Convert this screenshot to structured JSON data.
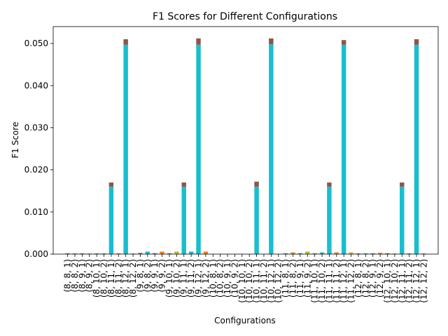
{
  "chart_data": {
    "type": "bar",
    "title": "F1 Scores for Different Configurations",
    "xlabel": "Configurations",
    "ylabel": "F1 Score",
    "ylim": [
      0,
      0.054
    ],
    "yticks": [
      "0.000",
      "0.010",
      "0.020",
      "0.030",
      "0.040",
      "0.050"
    ],
    "ytick_values": [
      0,
      0.01,
      0.02,
      0.03,
      0.04,
      0.05
    ],
    "grid": false,
    "legend": "none",
    "colors": {
      "base": "#17becf",
      "cap": "#8c564b",
      "small": [
        "#1f77b4",
        "#ff7f0e",
        "#2ca02c",
        "#bcbd22",
        "#7f7f7f",
        "#17becf"
      ]
    },
    "categories": [
      "(8, 8, 1)",
      "(8, 8, 2)",
      "(8, 9, 1)",
      "(8, 9, 2)",
      "(8, 10, 1)",
      "(8, 10, 2)",
      "(8, 11, 1)",
      "(8, 11, 2)",
      "(8, 12, 1)",
      "(8, 12, 2)",
      "(9, 8, 1)",
      "(9, 8, 2)",
      "(9, 9, 1)",
      "(9, 9, 2)",
      "(9, 10, 1)",
      "(9, 10, 2)",
      "(9, 11, 1)",
      "(9, 11, 2)",
      "(9, 12, 1)",
      "(9, 12, 2)",
      "(10, 8, 1)",
      "(10, 8, 2)",
      "(10, 9, 1)",
      "(10, 9, 2)",
      "(10, 10, 1)",
      "(10, 10, 2)",
      "(10, 11, 1)",
      "(10, 11, 2)",
      "(10, 12, 1)",
      "(10, 12, 2)",
      "(11, 8, 1)",
      "(11, 8, 2)",
      "(11, 9, 1)",
      "(11, 9, 2)",
      "(11, 10, 1)",
      "(11, 10, 2)",
      "(11, 11, 1)",
      "(11, 11, 2)",
      "(11, 12, 1)",
      "(11, 12, 2)",
      "(12, 8, 1)",
      "(12, 8, 2)",
      "(12, 9, 1)",
      "(12, 9, 2)",
      "(12, 10, 1)",
      "(12, 10, 2)",
      "(12, 11, 1)",
      "(12, 11, 2)",
      "(12, 12, 1)",
      "(12, 12, 2)"
    ],
    "visible_label_indices": [
      0,
      2,
      4,
      6,
      8,
      10,
      12,
      14,
      16,
      18,
      20,
      22,
      24,
      26,
      28,
      30,
      32,
      34,
      36,
      38,
      40,
      42,
      44,
      46,
      48,
      1,
      3,
      5,
      7,
      9,
      11,
      13,
      15,
      17,
      19,
      21,
      23,
      25,
      27,
      29,
      31,
      33,
      35,
      37,
      39,
      41,
      43,
      45,
      47,
      49
    ],
    "values": [
      0.0001,
      0.0002,
      0.0001,
      0.0001,
      0.0001,
      0.0001,
      0.017,
      0.0001,
      0.051,
      0.0001,
      0.0003,
      0.0006,
      0.0002,
      0.0006,
      0.0002,
      0.0006,
      0.017,
      0.0006,
      0.0512,
      0.0006,
      0.0,
      0.0,
      0.0,
      0.0,
      0.0,
      0.0,
      0.0172,
      0.0,
      0.0512,
      0.0,
      0.0001,
      0.0004,
      0.0002,
      0.0006,
      0.0002,
      0.0004,
      0.017,
      0.0004,
      0.0508,
      0.0004,
      0.0001,
      0.0002,
      0.0001,
      0.0003,
      0.0002,
      0.0001,
      0.017,
      0.0001,
      0.051,
      0.0001
    ],
    "base_values": [
      0.0001,
      0.0001,
      0.0001,
      0.0001,
      0.0001,
      0.0001,
      0.016,
      0.0001,
      0.0497,
      0.0001,
      0.0003,
      0.0001,
      0.0002,
      0.0002,
      0.0002,
      0.0002,
      0.016,
      0.0002,
      0.0497,
      0.0002,
      0.0,
      0.0,
      0.0,
      0.0,
      0.0,
      0.0,
      0.016,
      0.0,
      0.0498,
      0.0,
      0.0001,
      0.0001,
      0.0002,
      0.0002,
      0.0002,
      0.0001,
      0.016,
      0.0001,
      0.0497,
      0.0001,
      0.0001,
      0.0001,
      0.0001,
      0.0003,
      0.0002,
      0.0001,
      0.016,
      0.0001,
      0.0497,
      0.0001
    ]
  }
}
